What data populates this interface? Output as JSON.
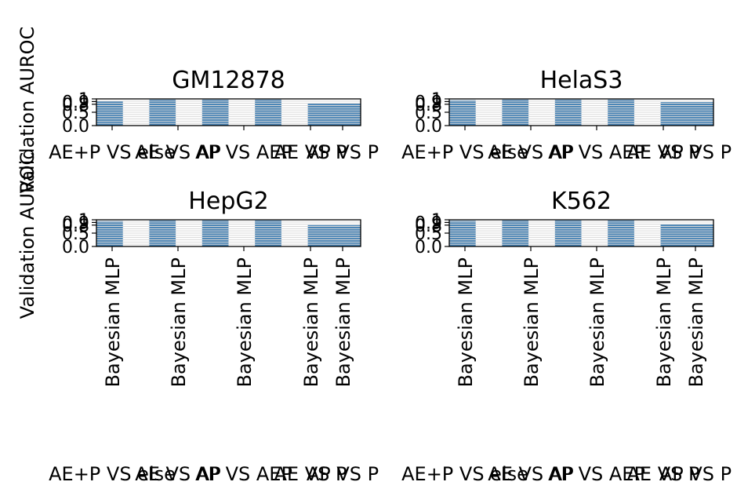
{
  "colors": {
    "bar": "#4682b4",
    "stripe": "#d9d9d9",
    "axis": "#000000",
    "background": "#ffffff"
  },
  "chart_data": {
    "type": "bar",
    "ylabel": "Validation AUROC",
    "ylim": [
      0,
      1
    ],
    "yticks": [
      "0.0",
      "0.5",
      "0.8",
      "0.9",
      "1"
    ],
    "tasks": [
      "AE+P VS else",
      "AE VS AP",
      "AP VS AEP",
      "AE VS P",
      "AP VS P"
    ],
    "model": "Bayesian MLP",
    "panels": [
      {
        "title": "GM12878",
        "values": [
          0.92,
          0.97,
          0.97,
          0.97,
          0.82
        ],
        "tick_style": "tasks"
      },
      {
        "title": "HelaS3",
        "values": [
          0.95,
          0.97,
          0.97,
          0.97,
          0.88
        ],
        "tick_style": "tasks"
      },
      {
        "title": "HepG2",
        "values": [
          0.95,
          0.97,
          0.97,
          0.97,
          0.8
        ],
        "tick_style": "model"
      },
      {
        "title": "K562",
        "values": [
          0.96,
          0.97,
          0.97,
          0.97,
          0.82
        ],
        "tick_style": "model"
      }
    ],
    "bottom_labels": [
      "AE+P VS else",
      "AE VS AP",
      "AP VS AEP",
      "AE VS P",
      "AP VS P"
    ],
    "grid": true,
    "legend": "none"
  }
}
